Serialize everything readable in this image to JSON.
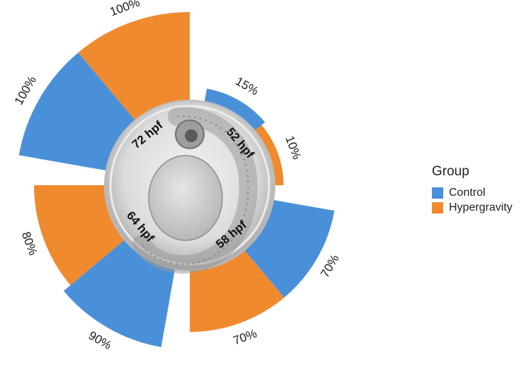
{
  "chart_data": {
    "type": "bar",
    "subtype": "circular-radial-bar",
    "categories": [
      "52 hpf",
      "58 hpf",
      "64 hpf",
      "72 hpf"
    ],
    "series": [
      {
        "name": "Control",
        "values": [
          15,
          70,
          90,
          100
        ],
        "color": "#4A90D9"
      },
      {
        "name": "Hypergravity",
        "values": [
          10,
          70,
          80,
          100
        ],
        "color": "#F08A2E"
      }
    ],
    "value_labels": {
      "Control": [
        "15%",
        "70%",
        "90%",
        "100%"
      ],
      "Hypergravity": [
        "10%",
        "70%",
        "80%",
        "100%"
      ]
    },
    "ylim": [
      0,
      100
    ],
    "center_image": "zebrafish-embryo",
    "legend": {
      "title": "Group",
      "position": "right"
    }
  }
}
